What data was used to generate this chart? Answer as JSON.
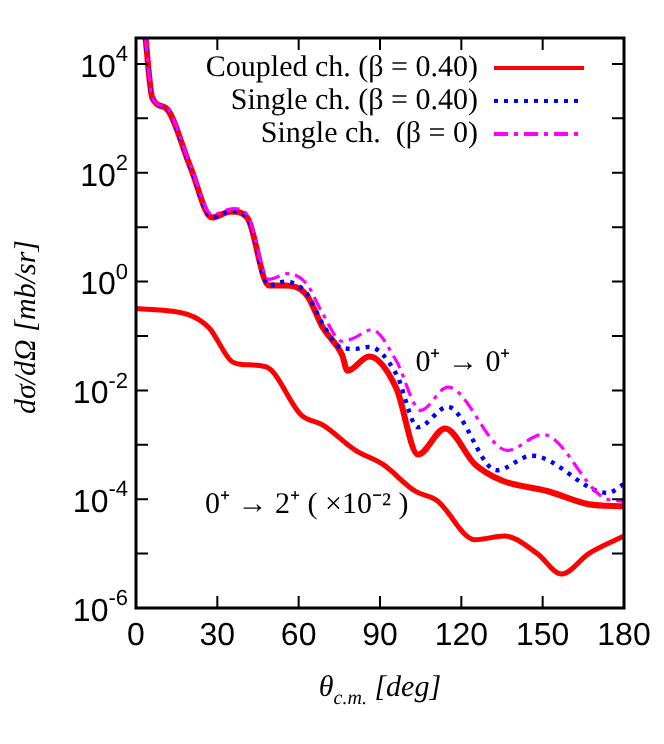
{
  "chart_data": {
    "type": "line",
    "xlabel": "θ$_{c.m.}$ [deg]",
    "ylabel": "dσ/dΩ [mb/sr]",
    "log": "y",
    "legend": "top right",
    "grid": false,
    "marker": "none",
    "xlim": [
      0,
      180
    ],
    "xticks": [
      0,
      30,
      60,
      90,
      120,
      150,
      180
    ],
    "ylim": [
      1e-06,
      30000
    ],
    "yticks": [
      {
        "value": 1e-06,
        "label": "10$^{-6}$"
      },
      {
        "value": 1e-05,
        "label": null
      },
      {
        "value": 0.0001,
        "label": "10$^{-4}$"
      },
      {
        "value": 0.001,
        "label": null
      },
      {
        "value": 0.01,
        "label": "10$^{-2}$"
      },
      {
        "value": 0.1,
        "label": null
      },
      {
        "value": 1,
        "label": "10$^{0}$"
      },
      {
        "value": 10,
        "label": null
      },
      {
        "value": 100,
        "label": "10$^{2}$"
      },
      {
        "value": 1000,
        "label": null
      },
      {
        "value": 10000,
        "label": "10$^{4}$"
      }
    ],
    "series": [
      {
        "name": "Coupled ch. (β = 0.40)",
        "color": "#ff0000",
        "line_style": "solid",
        "x": [
          3.5,
          6,
          11,
          20,
          28,
          35,
          41,
          49,
          55,
          63,
          69,
          76,
          78,
          86,
          96,
          104,
          114,
          125,
          135,
          152,
          167,
          180
        ],
        "values": [
          30000,
          2400,
          1550,
          130,
          15,
          19.5,
          15,
          0.85,
          0.85,
          0.56,
          0.14,
          0.045,
          0.023,
          0.042,
          0.011,
          0.00066,
          0.002,
          0.00044,
          0.00022,
          0.00014,
          8.1e-05,
          7.4e-05
        ]
      },
      {
        "name": "Single ch. (β = 0.40)",
        "color": "#0000ff",
        "line_style": "dotted",
        "x": [
          3.5,
          6,
          11,
          20,
          28,
          35,
          41,
          49,
          55,
          63,
          69,
          76,
          81,
          86,
          96,
          104,
          115,
          133,
          146,
          174,
          180
        ],
        "values": [
          30000,
          2400,
          1550,
          130,
          15,
          19.5,
          15,
          0.85,
          1.0,
          0.6,
          0.16,
          0.06,
          0.058,
          0.063,
          0.02,
          0.0021,
          0.005,
          0.00034,
          0.00063,
          0.00013,
          0.00019
        ]
      },
      {
        "name": "Single ch.  (β = 0)",
        "color": "#ff00ff",
        "line_style": "dashdot",
        "x": [
          3.5,
          6,
          11,
          20,
          28,
          36,
          41,
          49,
          56,
          63,
          69,
          76,
          80,
          87,
          96,
          105,
          115,
          137,
          150,
          172,
          180
        ],
        "values": [
          30000,
          2400,
          1600,
          140,
          17,
          22,
          17,
          1.1,
          1.4,
          0.9,
          0.25,
          0.08,
          0.09,
          0.13,
          0.035,
          0.0043,
          0.0115,
          0.00079,
          0.00155,
          0.00011,
          9e-05
        ]
      },
      {
        "color": "#ff0000",
        "line_style": "solid",
        "x": [
          0,
          19,
          27,
          35,
          39,
          48,
          61,
          69,
          81,
          91,
          103,
          111,
          125,
          136,
          148,
          157,
          167,
          180
        ],
        "values": [
          0.32,
          0.25,
          0.14,
          0.035,
          0.03,
          0.027,
          0.0035,
          0.0023,
          0.00079,
          0.00044,
          0.00014,
          9.5e-05,
          1.8e-05,
          2.1e-05,
          1e-05,
          4.2e-06,
          1e-05,
          2.1e-05
        ]
      }
    ],
    "annotations": [
      "0⁺ → 0⁺",
      "0⁺ → 2⁺ ( ×10⁻² )"
    ]
  }
}
